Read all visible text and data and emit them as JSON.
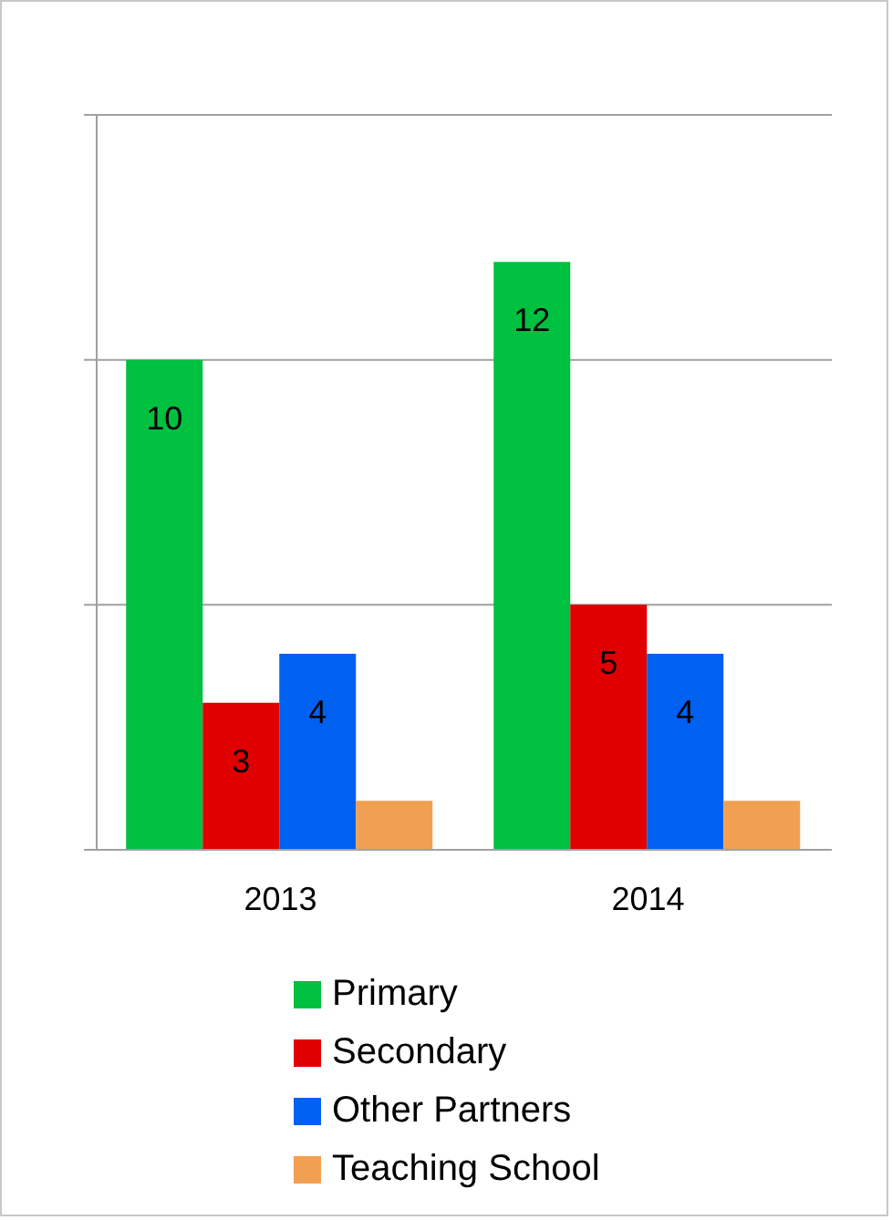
{
  "chart_data": {
    "type": "bar",
    "categories": [
      "2013",
      "2014"
    ],
    "series": [
      {
        "name": "Primary",
        "color": "#00c040",
        "values": [
          10,
          12
        ],
        "value_labels": [
          "10",
          "12"
        ]
      },
      {
        "name": "Secondary",
        "color": "#e00000",
        "values": [
          3,
          5
        ],
        "value_labels": [
          "3",
          "5"
        ]
      },
      {
        "name": "Other Partners",
        "color": "#0060f0",
        "values": [
          4,
          4
        ],
        "value_labels": [
          "4",
          "4"
        ]
      },
      {
        "name": "Teaching School",
        "color": "#f0a050",
        "values": [
          1,
          1
        ],
        "value_labels": [
          null,
          null
        ]
      }
    ],
    "ylim": [
      0,
      15
    ],
    "yticks": [
      {
        "value": 0,
        "label": null
      },
      {
        "value": 5,
        "label": null
      },
      {
        "value": 10,
        "label": null
      },
      {
        "value": 15,
        "label": null
      }
    ],
    "tick_labels": "x",
    "grid": "y",
    "legend": "bottom"
  }
}
